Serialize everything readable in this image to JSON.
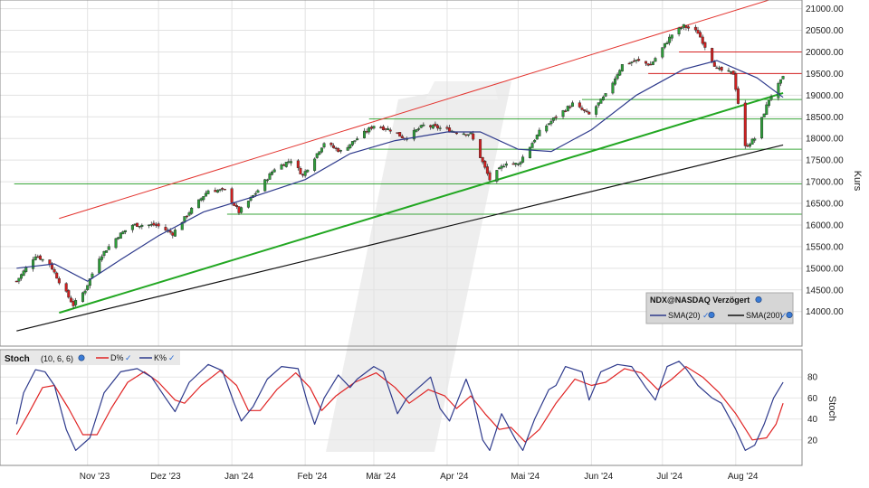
{
  "chart_data": [
    {
      "panel": "price",
      "type": "candlestick",
      "ylabel": "Kurs",
      "ylim": [
        13200,
        21200
      ],
      "yticks": [
        14000,
        14500,
        15000,
        15500,
        16000,
        16500,
        17000,
        17500,
        18000,
        18500,
        19000,
        19500,
        20000,
        20500,
        21000
      ],
      "ytick_labels": [
        "14000.00",
        "14500.00",
        "15000.00",
        "15500.00",
        "16000.00",
        "16500.00",
        "17000.00",
        "17500.00",
        "18000.00",
        "18500.00",
        "19000.00",
        "19500.00",
        "20000.00",
        "20500.00",
        "21000.00"
      ],
      "xticks": [
        "Nov '23",
        "Dez '23",
        "Jan '24",
        "Feb '24",
        "Mär '24",
        "Apr '24",
        "Mai '24",
        "Jun '24",
        "Jul '24",
        "Aug '24"
      ],
      "grid": true,
      "legend": {
        "placement": "bottom-right",
        "title": "NDX@NASDAQ Verzögert",
        "entries": [
          {
            "label": "SMA(20)",
            "color": "#2e3a8c"
          },
          {
            "label": "SMA(200)",
            "color": "#111111"
          }
        ]
      },
      "colors": {
        "up": "#2e9e3a",
        "down": "#d02020",
        "sma20": "#2e3a8c",
        "sma200": "#111111",
        "trend_green": "#22a722",
        "trend_red": "#e3342f",
        "support_green": "#3aa63a",
        "resistance_red": "#d62020"
      },
      "close_path": [
        [
          "2023-10-02",
          14700
        ],
        [
          "2023-10-10",
          15300
        ],
        [
          "2023-10-16",
          15100
        ],
        [
          "2023-10-20",
          14700
        ],
        [
          "2023-10-26",
          14150
        ],
        [
          "2023-10-31",
          14500
        ],
        [
          "2023-11-06",
          15250
        ],
        [
          "2023-11-14",
          15750
        ],
        [
          "2023-11-20",
          16000
        ],
        [
          "2023-11-30",
          16000
        ],
        [
          "2023-12-07",
          15800
        ],
        [
          "2023-12-14",
          16300
        ],
        [
          "2023-12-22",
          16800
        ],
        [
          "2023-12-29",
          16800
        ],
        [
          "2024-01-04",
          16300
        ],
        [
          "2024-01-12",
          16800
        ],
        [
          "2024-01-19",
          17300
        ],
        [
          "2024-01-26",
          17500
        ],
        [
          "2024-01-31",
          17150
        ],
        [
          "2024-02-09",
          17900
        ],
        [
          "2024-02-16",
          17700
        ],
        [
          "2024-02-23",
          18000
        ],
        [
          "2024-03-01",
          18300
        ],
        [
          "2024-03-08",
          18200
        ],
        [
          "2024-03-14",
          18000
        ],
        [
          "2024-03-22",
          18300
        ],
        [
          "2024-03-28",
          18250
        ],
        [
          "2024-04-05",
          18150
        ],
        [
          "2024-04-11",
          18100
        ],
        [
          "2024-04-19",
          17050
        ],
        [
          "2024-04-26",
          17450
        ],
        [
          "2024-05-01",
          17400
        ],
        [
          "2024-05-10",
          18150
        ],
        [
          "2024-05-17",
          18500
        ],
        [
          "2024-05-24",
          18800
        ],
        [
          "2024-05-31",
          18550
        ],
        [
          "2024-06-07",
          19000
        ],
        [
          "2024-06-14",
          19700
        ],
        [
          "2024-06-20",
          19800
        ],
        [
          "2024-06-26",
          19700
        ],
        [
          "2024-07-05",
          20400
        ],
        [
          "2024-07-10",
          20600
        ],
        [
          "2024-07-16",
          20450
        ],
        [
          "2024-07-24",
          19600
        ],
        [
          "2024-07-31",
          19500
        ],
        [
          "2024-08-05",
          17800
        ],
        [
          "2024-08-09",
          18000
        ],
        [
          "2024-08-15",
          18900
        ],
        [
          "2024-08-21",
          19400
        ]
      ],
      "sma20_path": [
        [
          "2023-10-02",
          15000
        ],
        [
          "2023-10-18",
          15100
        ],
        [
          "2023-11-01",
          14700
        ],
        [
          "2023-11-15",
          15200
        ],
        [
          "2023-12-01",
          15750
        ],
        [
          "2023-12-20",
          16300
        ],
        [
          "2024-01-10",
          16650
        ],
        [
          "2024-02-01",
          17050
        ],
        [
          "2024-02-20",
          17650
        ],
        [
          "2024-03-10",
          17950
        ],
        [
          "2024-04-01",
          18150
        ],
        [
          "2024-04-15",
          18150
        ],
        [
          "2024-05-01",
          17750
        ],
        [
          "2024-05-15",
          17700
        ],
        [
          "2024-06-01",
          18200
        ],
        [
          "2024-06-20",
          19000
        ],
        [
          "2024-07-10",
          19600
        ],
        [
          "2024-07-24",
          19800
        ],
        [
          "2024-08-10",
          19400
        ],
        [
          "2024-08-21",
          18950
        ]
      ],
      "sma200_path": [
        [
          "2023-10-02",
          13550
        ],
        [
          "2024-08-21",
          17850
        ]
      ],
      "trendlines": [
        {
          "name": "channel-top",
          "color": "#e3342f",
          "points": [
            [
              "2023-10-20",
              16150
            ],
            [
              "2024-08-21",
              21300
            ]
          ]
        },
        {
          "name": "channel-bottom",
          "color": "#22a722",
          "points": [
            [
              "2023-10-20",
              13970
            ],
            [
              "2024-08-21",
              19050
            ]
          ]
        }
      ],
      "hlines": [
        {
          "y": 16250,
          "from": "2023-12-30",
          "color": "#3aa63a"
        },
        {
          "y": 16950,
          "from": "2023-10-01",
          "color": "#3aa63a"
        },
        {
          "y": 17750,
          "from": "2024-02-28",
          "color": "#3aa63a"
        },
        {
          "y": 18450,
          "from": "2024-02-28",
          "color": "#3aa63a"
        },
        {
          "y": 18900,
          "from": "2024-05-28",
          "color": "#3aa63a"
        },
        {
          "y": 19500,
          "from": "2024-06-25",
          "color": "#d62020"
        },
        {
          "y": 20000,
          "from": "2024-07-08",
          "color": "#d62020"
        }
      ]
    },
    {
      "panel": "stochastic",
      "type": "line",
      "title": "Stoch",
      "params": "(10, 6, 6)",
      "ylabel": "Stoch",
      "ylim": [
        0,
        100
      ],
      "yticks": [
        20,
        40,
        60,
        80
      ],
      "ytick_labels": [
        "20",
        "40",
        "60",
        "80"
      ],
      "legend": {
        "placement": "top-left",
        "entries": [
          {
            "label": "D%",
            "color": "#e02424"
          },
          {
            "label": "K%",
            "color": "#2e3a8c"
          }
        ]
      },
      "series": [
        {
          "name": "K%",
          "color": "#2e3a8c",
          "points": [
            [
              "2023-10-02",
              35
            ],
            [
              "2023-10-05",
              65
            ],
            [
              "2023-10-10",
              87
            ],
            [
              "2023-10-14",
              85
            ],
            [
              "2023-10-18",
              72
            ],
            [
              "2023-10-23",
              30
            ],
            [
              "2023-10-27",
              10
            ],
            [
              "2023-11-02",
              22
            ],
            [
              "2023-11-08",
              65
            ],
            [
              "2023-11-15",
              85
            ],
            [
              "2023-11-22",
              88
            ],
            [
              "2023-11-28",
              80
            ],
            [
              "2023-12-04",
              60
            ],
            [
              "2023-12-08",
              47
            ],
            [
              "2023-12-14",
              75
            ],
            [
              "2023-12-22",
              92
            ],
            [
              "2023-12-28",
              86
            ],
            [
              "2024-01-02",
              55
            ],
            [
              "2024-01-05",
              38
            ],
            [
              "2024-01-10",
              52
            ],
            [
              "2024-01-16",
              78
            ],
            [
              "2024-01-22",
              90
            ],
            [
              "2024-01-29",
              88
            ],
            [
              "2024-02-02",
              55
            ],
            [
              "2024-02-05",
              35
            ],
            [
              "2024-02-09",
              60
            ],
            [
              "2024-02-15",
              82
            ],
            [
              "2024-02-20",
              70
            ],
            [
              "2024-02-23",
              78
            ],
            [
              "2024-03-01",
              90
            ],
            [
              "2024-03-05",
              85
            ],
            [
              "2024-03-11",
              45
            ],
            [
              "2024-03-15",
              60
            ],
            [
              "2024-03-20",
              70
            ],
            [
              "2024-03-25",
              80
            ],
            [
              "2024-03-29",
              50
            ],
            [
              "2024-04-02",
              38
            ],
            [
              "2024-04-05",
              55
            ],
            [
              "2024-04-09",
              78
            ],
            [
              "2024-04-12",
              60
            ],
            [
              "2024-04-16",
              20
            ],
            [
              "2024-04-19",
              10
            ],
            [
              "2024-04-24",
              45
            ],
            [
              "2024-04-30",
              20
            ],
            [
              "2024-05-03",
              10
            ],
            [
              "2024-05-08",
              40
            ],
            [
              "2024-05-14",
              68
            ],
            [
              "2024-05-17",
              72
            ],
            [
              "2024-05-21",
              90
            ],
            [
              "2024-05-28",
              85
            ],
            [
              "2024-05-31",
              58
            ],
            [
              "2024-06-05",
              85
            ],
            [
              "2024-06-12",
              92
            ],
            [
              "2024-06-18",
              90
            ],
            [
              "2024-06-24",
              70
            ],
            [
              "2024-06-28",
              58
            ],
            [
              "2024-07-03",
              90
            ],
            [
              "2024-07-08",
              95
            ],
            [
              "2024-07-11",
              88
            ],
            [
              "2024-07-16",
              72
            ],
            [
              "2024-07-22",
              60
            ],
            [
              "2024-07-26",
              55
            ],
            [
              "2024-08-01",
              30
            ],
            [
              "2024-08-05",
              10
            ],
            [
              "2024-08-09",
              15
            ],
            [
              "2024-08-13",
              35
            ],
            [
              "2024-08-17",
              60
            ],
            [
              "2024-08-21",
              75
            ]
          ]
        },
        {
          "name": "D%",
          "color": "#e02424",
          "points": [
            [
              "2023-10-02",
              25
            ],
            [
              "2023-10-07",
              45
            ],
            [
              "2023-10-13",
              70
            ],
            [
              "2023-10-18",
              72
            ],
            [
              "2023-10-24",
              50
            ],
            [
              "2023-10-30",
              25
            ],
            [
              "2023-11-05",
              25
            ],
            [
              "2023-11-11",
              50
            ],
            [
              "2023-11-18",
              75
            ],
            [
              "2023-11-25",
              85
            ],
            [
              "2023-12-01",
              75
            ],
            [
              "2023-12-08",
              58
            ],
            [
              "2023-12-12",
              55
            ],
            [
              "2023-12-19",
              72
            ],
            [
              "2023-12-27",
              86
            ],
            [
              "2024-01-03",
              72
            ],
            [
              "2024-01-08",
              48
            ],
            [
              "2024-01-13",
              48
            ],
            [
              "2024-01-20",
              68
            ],
            [
              "2024-01-28",
              84
            ],
            [
              "2024-02-03",
              70
            ],
            [
              "2024-02-08",
              48
            ],
            [
              "2024-02-14",
              62
            ],
            [
              "2024-02-22",
              75
            ],
            [
              "2024-03-02",
              84
            ],
            [
              "2024-03-10",
              70
            ],
            [
              "2024-03-16",
              55
            ],
            [
              "2024-03-24",
              68
            ],
            [
              "2024-03-31",
              62
            ],
            [
              "2024-04-05",
              50
            ],
            [
              "2024-04-11",
              62
            ],
            [
              "2024-04-17",
              45
            ],
            [
              "2024-04-23",
              30
            ],
            [
              "2024-04-28",
              32
            ],
            [
              "2024-05-04",
              18
            ],
            [
              "2024-05-10",
              30
            ],
            [
              "2024-05-17",
              55
            ],
            [
              "2024-05-25",
              78
            ],
            [
              "2024-06-01",
              72
            ],
            [
              "2024-06-07",
              75
            ],
            [
              "2024-06-15",
              88
            ],
            [
              "2024-06-22",
              84
            ],
            [
              "2024-06-29",
              68
            ],
            [
              "2024-07-05",
              78
            ],
            [
              "2024-07-11",
              90
            ],
            [
              "2024-07-18",
              80
            ],
            [
              "2024-07-25",
              65
            ],
            [
              "2024-08-01",
              45
            ],
            [
              "2024-08-08",
              20
            ],
            [
              "2024-08-14",
              22
            ],
            [
              "2024-08-18",
              35
            ],
            [
              "2024-08-21",
              55
            ]
          ]
        }
      ]
    }
  ]
}
